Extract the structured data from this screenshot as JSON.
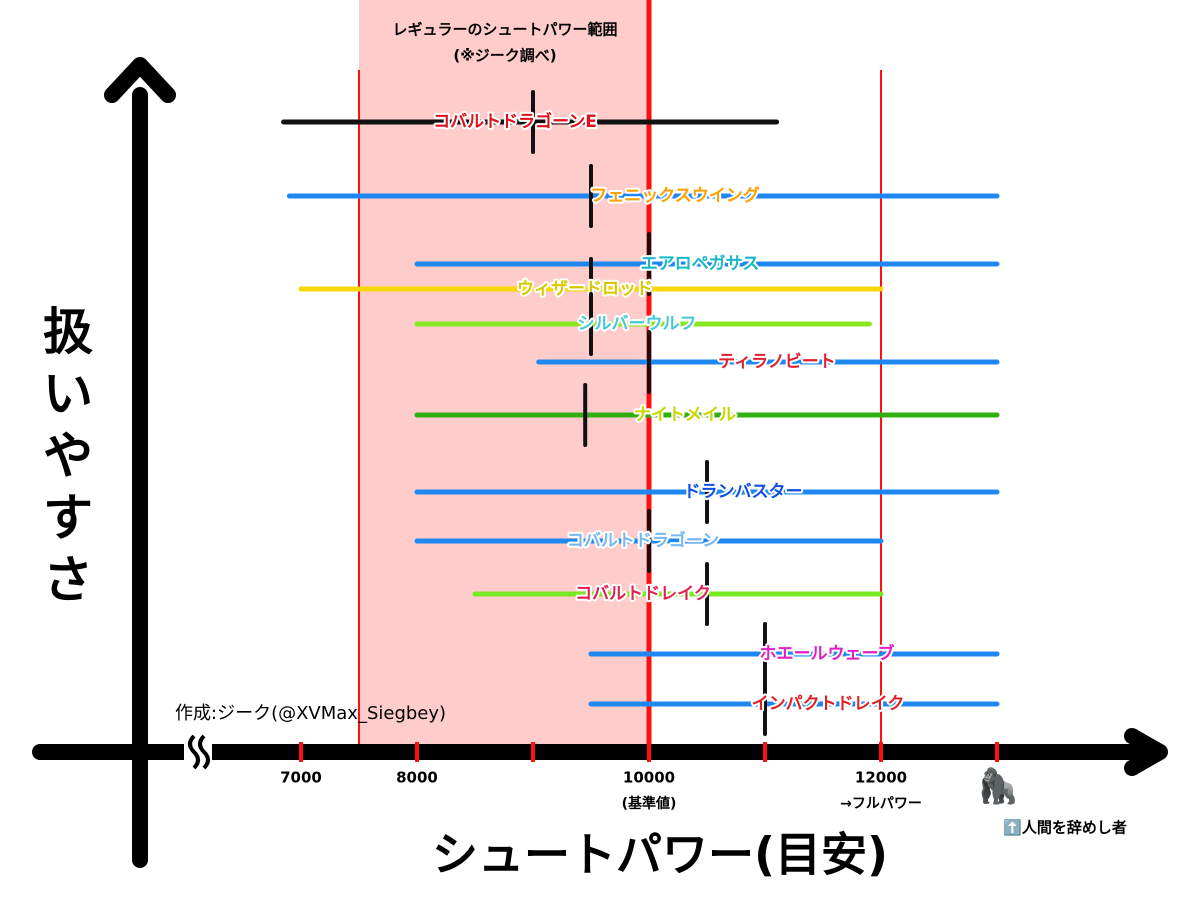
{
  "chart_data": {
    "type": "range",
    "title": [
      "レギュラーのシュートパワー範囲",
      "(※ジーク調べ)"
    ],
    "x_label": "シュートパワー(目安)",
    "y_label": "扱いやすさ",
    "xlim": [
      6000,
      14000
    ],
    "xticks": [
      7000,
      8000,
      10000,
      12000
    ],
    "xminor": [
      9000,
      11000,
      13000
    ],
    "tick_notes": [
      {
        "x": 10000,
        "text": "(基準値)"
      },
      {
        "x": 12000,
        "text": "→フルパワー"
      }
    ],
    "shaded": {
      "from": 7500,
      "to": 10000,
      "color": "#ffcccc"
    },
    "reference_lines": [
      7500,
      10000,
      12000
    ],
    "credit": "作成:ジーク(@XVMax_Siegbey)",
    "beyond_note": {
      "icon": "🦍",
      "text": "⬆️人間を辞めし者"
    },
    "series": [
      {
        "name": "コバルトドラゴーンE",
        "color": "#111111",
        "label_color": "#e0101a",
        "min": 6850,
        "max": 11100,
        "marker": 9000
      },
      {
        "name": "フェニックスウイング",
        "color": "#1e88f0",
        "label_color": "#ffa000",
        "min": 6900,
        "max": 13000,
        "marker": 9500
      },
      {
        "name": "エアロペガサス",
        "color": "#1e88f0",
        "label_color": "#18b8c8",
        "min": 8000,
        "max": 13000,
        "marker": 10000
      },
      {
        "name": "ウィザードロッド",
        "color": "#f8d800",
        "label_color": "#d8c800",
        "min": 7000,
        "max": 12000,
        "marker": 9500
      },
      {
        "name": "シルバーウルフ",
        "color": "#88e820",
        "label_color": "#48c8d8",
        "min": 8000,
        "max": 11900,
        "marker": 9500
      },
      {
        "name": "ティラノビート",
        "color": "#1e88f0",
        "label_color": "#e02030",
        "min": 9050,
        "max": 13000,
        "marker": 10000
      },
      {
        "name": "ナイトメイル",
        "color": "#30b010",
        "label_color": "#c8d800",
        "min": 8000,
        "max": 13000,
        "marker": 9450
      },
      {
        "name": "ドランバスター",
        "color": "#1e88f0",
        "label_color": "#1050e0",
        "min": 8000,
        "max": 13000,
        "marker": 10500
      },
      {
        "name": "コバルトドラゴーン",
        "color": "#1e88f0",
        "label_color": "#78b8f0",
        "min": 8000,
        "max": 12000,
        "marker": 10000
      },
      {
        "name": "コバルトドレイク",
        "color": "#78e820",
        "label_color": "#e02050",
        "min": 8500,
        "max": 12000,
        "marker": 10500
      },
      {
        "name": "ホエールウェーブ",
        "color": "#1e88f0",
        "label_color": "#e020c0",
        "min": 9500,
        "max": 13000,
        "marker": 11000
      },
      {
        "name": "インパクトドレイク",
        "color": "#1e88f0",
        "label_color": "#e02020",
        "min": 9500,
        "max": 13000,
        "marker": 11000
      }
    ]
  }
}
